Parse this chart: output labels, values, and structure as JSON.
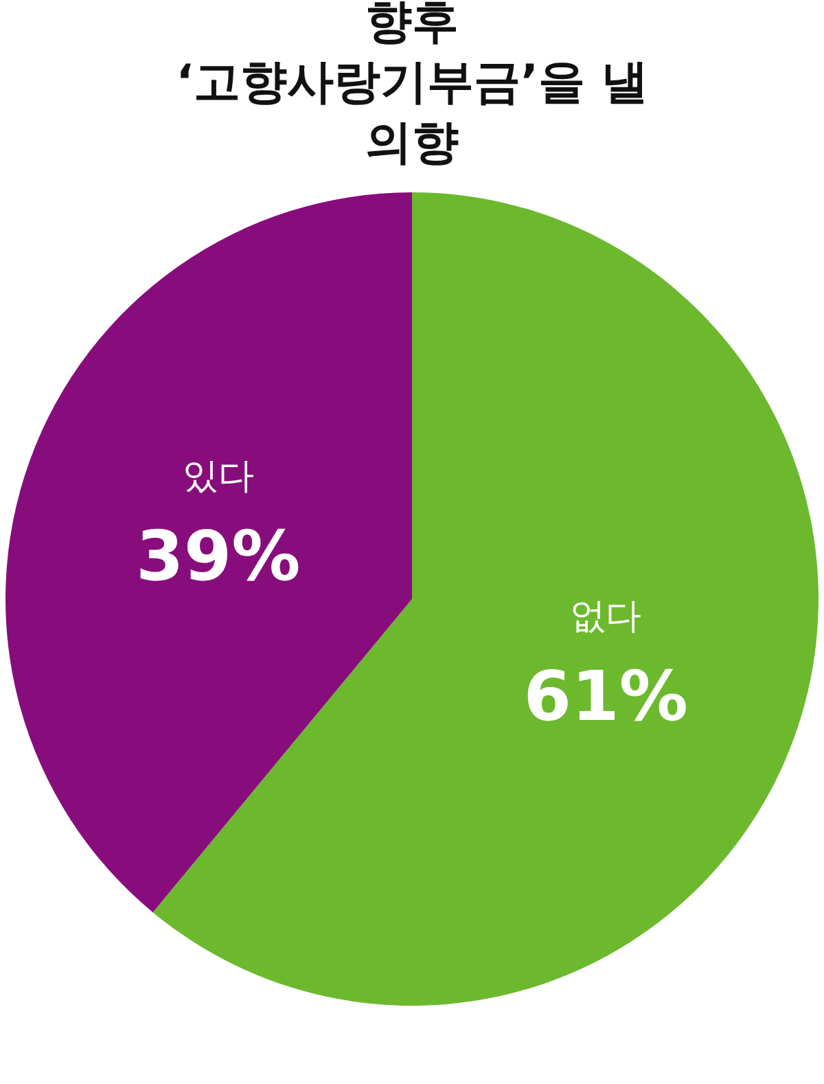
{
  "chart_data": {
    "type": "pie",
    "title": "향후\n‘고향사랑기부금’을 낼\n의향",
    "categories": [
      "없다",
      "있다"
    ],
    "values": [
      61,
      39
    ],
    "colors": [
      "#6cb92e",
      "#880d7c"
    ],
    "value_labels": [
      "61%",
      "39%"
    ],
    "legend": false
  }
}
